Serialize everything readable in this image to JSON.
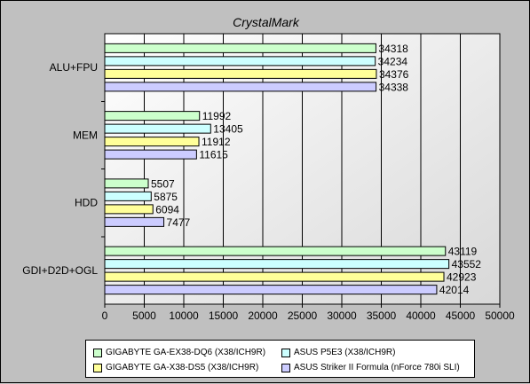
{
  "chart_data": {
    "type": "bar",
    "orientation": "horizontal",
    "title": "CrystalMark",
    "categories": [
      "ALU+FPU",
      "MEM",
      "HDD",
      "GDI+D2D+OGL"
    ],
    "series": [
      {
        "name": "GIGABYTE GA-EX38-DQ6 (X38/ICH9R)",
        "color": "#ccffcc",
        "values": [
          34318,
          11992,
          5507,
          43119
        ]
      },
      {
        "name": "ASUS P5E3 (X38/ICH9R)",
        "color": "#ccffff",
        "values": [
          34234,
          13405,
          5875,
          43552
        ]
      },
      {
        "name": "GIGABYTE GA-X38-DS5 (X38/ICH9R)",
        "color": "#ffff99",
        "values": [
          34376,
          11912,
          6094,
          42923
        ]
      },
      {
        "name": "ASUS Striker II Formula (nForce 780i SLI)",
        "color": "#ccccff",
        "values": [
          34338,
          11615,
          7477,
          42014
        ]
      }
    ],
    "xlim": [
      0,
      50000
    ],
    "xticks": [
      0,
      5000,
      10000,
      15000,
      20000,
      25000,
      30000,
      35000,
      40000,
      45000,
      50000
    ],
    "grid": true,
    "legend_position": "bottom",
    "data_labels": true
  }
}
